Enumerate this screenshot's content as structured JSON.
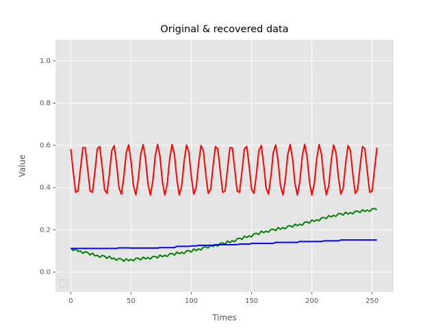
{
  "chart_data": {
    "type": "line",
    "title": "Original & recovered data",
    "x_label": "Times",
    "y_label": "Value",
    "x": [
      0,
      2,
      4,
      6,
      8,
      10,
      12,
      14,
      16,
      18,
      20,
      22,
      24,
      26,
      28,
      30,
      32,
      34,
      36,
      38,
      40,
      42,
      44,
      46,
      48,
      50,
      52,
      54,
      56,
      58,
      60,
      62,
      64,
      66,
      68,
      70,
      72,
      74,
      76,
      78,
      80,
      82,
      84,
      86,
      88,
      90,
      92,
      94,
      96,
      98,
      100,
      102,
      104,
      106,
      108,
      110,
      112,
      114,
      116,
      118,
      120,
      122,
      124,
      126,
      128,
      130,
      132,
      134,
      136,
      138,
      140,
      142,
      144,
      146,
      148,
      150,
      152,
      154,
      156,
      158,
      160,
      162,
      164,
      166,
      168,
      170,
      172,
      174,
      176,
      178,
      180,
      182,
      184,
      186,
      188,
      190,
      192,
      194,
      196,
      198,
      200,
      202,
      204,
      206,
      208,
      210,
      212,
      214,
      216,
      218,
      220,
      222,
      224,
      226,
      228,
      230,
      232,
      234,
      236,
      238,
      240,
      242,
      244,
      246,
      248,
      250,
      252,
      254
    ],
    "series": [
      {
        "color": "#ff0000",
        "values": [
          0.583,
          0.476,
          0.378,
          0.384,
          0.488,
          0.589,
          0.589,
          0.488,
          0.384,
          0.378,
          0.476,
          0.583,
          0.595,
          0.5,
          0.391,
          0.373,
          0.464,
          0.575,
          0.599,
          0.512,
          0.399,
          0.369,
          0.452,
          0.567,
          0.602,
          0.524,
          0.408,
          0.366,
          0.44,
          0.557,
          0.604,
          0.536,
          0.418,
          0.365,
          0.429,
          0.547,
          0.605,
          0.547,
          0.428,
          0.365,
          0.418,
          0.536,
          0.604,
          0.557,
          0.439,
          0.366,
          0.408,
          0.525,
          0.602,
          0.566,
          0.451,
          0.369,
          0.399,
          0.513,
          0.599,
          0.575,
          0.463,
          0.373,
          0.391,
          0.501,
          0.595,
          0.583,
          0.476,
          0.378,
          0.384,
          0.488,
          0.589,
          0.589,
          0.488,
          0.384,
          0.378,
          0.476,
          0.583,
          0.595,
          0.5,
          0.391,
          0.373,
          0.464,
          0.575,
          0.599,
          0.512,
          0.399,
          0.369,
          0.452,
          0.567,
          0.602,
          0.524,
          0.408,
          0.366,
          0.44,
          0.557,
          0.604,
          0.536,
          0.418,
          0.365,
          0.429,
          0.547,
          0.605,
          0.547,
          0.428,
          0.365,
          0.418,
          0.536,
          0.604,
          0.557,
          0.439,
          0.366,
          0.408,
          0.525,
          0.602,
          0.566,
          0.451,
          0.369,
          0.399,
          0.513,
          0.599,
          0.575,
          0.463,
          0.373,
          0.391,
          0.501,
          0.595,
          0.583,
          0.476,
          0.378,
          0.384,
          0.488,
          0.589
        ]
      },
      {
        "color": "#008000",
        "values": [
          0.114,
          0.102,
          0.111,
          0.098,
          0.1,
          0.089,
          0.097,
          0.093,
          0.081,
          0.09,
          0.077,
          0.08,
          0.07,
          0.079,
          0.076,
          0.065,
          0.075,
          0.063,
          0.066,
          0.056,
          0.065,
          0.062,
          0.051,
          0.063,
          0.054,
          0.06,
          0.054,
          0.066,
          0.066,
          0.058,
          0.071,
          0.063,
          0.069,
          0.062,
          0.074,
          0.074,
          0.067,
          0.081,
          0.073,
          0.08,
          0.074,
          0.087,
          0.088,
          0.081,
          0.095,
          0.087,
          0.094,
          0.088,
          0.101,
          0.102,
          0.095,
          0.11,
          0.102,
          0.11,
          0.105,
          0.118,
          0.12,
          0.114,
          0.128,
          0.121,
          0.129,
          0.123,
          0.137,
          0.139,
          0.132,
          0.147,
          0.14,
          0.149,
          0.144,
          0.158,
          0.161,
          0.155,
          0.17,
          0.164,
          0.172,
          0.167,
          0.182,
          0.184,
          0.178,
          0.194,
          0.187,
          0.194,
          0.189,
          0.202,
          0.203,
          0.197,
          0.211,
          0.203,
          0.211,
          0.205,
          0.218,
          0.22,
          0.213,
          0.227,
          0.22,
          0.227,
          0.222,
          0.236,
          0.238,
          0.232,
          0.247,
          0.24,
          0.248,
          0.243,
          0.257,
          0.259,
          0.253,
          0.268,
          0.261,
          0.269,
          0.264,
          0.277,
          0.277,
          0.27,
          0.284,
          0.275,
          0.282,
          0.276,
          0.288,
          0.289,
          0.282,
          0.295,
          0.287,
          0.294,
          0.287,
          0.3,
          0.301,
          0.295
        ]
      },
      {
        "color": "#0000ff",
        "values": [
          0.112,
          0.112,
          0.112,
          0.112,
          0.112,
          0.112,
          0.112,
          0.112,
          0.112,
          0.112,
          0.112,
          0.112,
          0.112,
          0.112,
          0.112,
          0.112,
          0.112,
          0.112,
          0.112,
          0.112,
          0.115,
          0.115,
          0.115,
          0.115,
          0.115,
          0.114,
          0.114,
          0.114,
          0.114,
          0.114,
          0.114,
          0.114,
          0.114,
          0.114,
          0.114,
          0.114,
          0.114,
          0.116,
          0.116,
          0.116,
          0.116,
          0.116,
          0.116,
          0.116,
          0.122,
          0.122,
          0.122,
          0.122,
          0.122,
          0.122,
          0.124,
          0.124,
          0.124,
          0.127,
          0.127,
          0.127,
          0.127,
          0.127,
          0.127,
          0.127,
          0.13,
          0.13,
          0.13,
          0.13,
          0.13,
          0.13,
          0.13,
          0.13,
          0.13,
          0.13,
          0.133,
          0.133,
          0.133,
          0.133,
          0.133,
          0.136,
          0.136,
          0.136,
          0.136,
          0.136,
          0.136,
          0.136,
          0.136,
          0.136,
          0.136,
          0.141,
          0.141,
          0.141,
          0.141,
          0.141,
          0.141,
          0.141,
          0.141,
          0.141,
          0.141,
          0.145,
          0.145,
          0.145,
          0.145,
          0.145,
          0.145,
          0.145,
          0.145,
          0.145,
          0.145,
          0.148,
          0.148,
          0.148,
          0.148,
          0.148,
          0.148,
          0.148,
          0.152,
          0.152,
          0.152,
          0.152,
          0.152,
          0.152,
          0.152,
          0.152,
          0.152,
          0.152,
          0.152,
          0.152,
          0.152,
          0.152,
          0.152,
          0.152
        ]
      }
    ],
    "xlim": [
      -12.75,
      267.75
    ],
    "ylim": [
      -0.094,
      1.1
    ],
    "xticks": [
      0,
      50,
      100,
      150,
      200,
      250
    ],
    "yticks": [
      {
        "value": 0,
        "label": "0.0"
      },
      0.2,
      0.4,
      0.6,
      0.8,
      {
        "value": 1,
        "label": "1.0"
      }
    ],
    "grid": true
  }
}
